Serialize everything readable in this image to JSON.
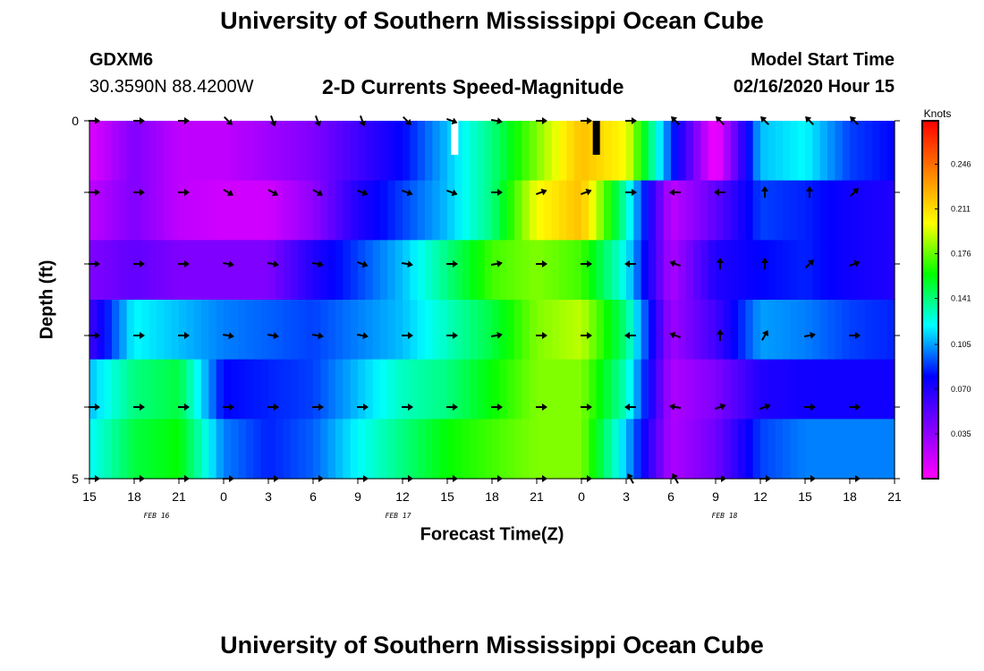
{
  "header": {
    "title": "University of Southern Mississippi Ocean Cube",
    "station_id": "GDXM6",
    "coords": "30.3590N 88.4200W",
    "subtitle": "2-D Currents Speed-Magnitude",
    "start_label": "Model Start Time",
    "start_value": "02/16/2020 Hour 15"
  },
  "footer": {
    "title": "University of Southern Mississippi Ocean Cube"
  },
  "chart_data": {
    "type": "heatmap",
    "title": "2-D Currents Speed-Magnitude",
    "xlabel": "Forecast Time(Z)",
    "ylabel": "Depth (ft)",
    "x_ticks": [
      "15",
      "18",
      "21",
      "0",
      "3",
      "6",
      "9",
      "12",
      "15",
      "18",
      "21",
      "0",
      "3",
      "6",
      "9",
      "12",
      "15",
      "18",
      "21"
    ],
    "date_labels": [
      {
        "label": "FEB 16",
        "tick_index": 1.5
      },
      {
        "label": "FEB 17",
        "tick_index": 6.9
      },
      {
        "label": "FEB 18",
        "tick_index": 14.2
      }
    ],
    "y_ticks": [
      "0",
      "",
      "",
      "",
      "",
      "5"
    ],
    "ylim": [
      0,
      5
    ],
    "colorbar": {
      "units": "Knots",
      "ticks": [
        "0.246",
        "0.211",
        "0.176",
        "0.141",
        "0.105",
        "0.070",
        "0.035"
      ],
      "tick_values": [
        0.246,
        0.211,
        0.176,
        0.141,
        0.105,
        0.07,
        0.035
      ],
      "range": [
        0.0,
        0.28
      ],
      "colors": [
        "#ff00ff",
        "#8000ff",
        "#0000ff",
        "#00ffff",
        "#00ff00",
        "#ffff00",
        "#ff8000",
        "#ff0000"
      ]
    },
    "times_hours": [
      0,
      3,
      6,
      9,
      12,
      15,
      18,
      21,
      24,
      27,
      30,
      33,
      36,
      39,
      42,
      45,
      48,
      51,
      54
    ],
    "rows": [
      {
        "layer": "surface",
        "speed": [
          0.01,
          0.04,
          0.02,
          0.02,
          0.03,
          0.04,
          0.06,
          0.08,
          0.11,
          0.14,
          0.18,
          0.22,
          0.2,
          0.09,
          0.0,
          0.11,
          0.12,
          0.09,
          0.08
        ]
      },
      {
        "layer": "1",
        "speed": [
          0.02,
          0.04,
          0.02,
          0.015,
          0.015,
          0.035,
          0.07,
          0.09,
          0.11,
          0.14,
          0.2,
          0.22,
          0.13,
          0.02,
          0.05,
          0.09,
          0.085,
          0.075,
          0.07
        ]
      },
      {
        "layer": "2",
        "speed": [
          0.04,
          0.05,
          0.04,
          0.04,
          0.04,
          0.07,
          0.09,
          0.11,
          0.14,
          0.17,
          0.18,
          0.17,
          0.12,
          0.025,
          0.07,
          0.08,
          0.085,
          0.075,
          0.07
        ]
      },
      {
        "layer": "3",
        "speed": [
          0.06,
          0.12,
          0.11,
          0.1,
          0.095,
          0.09,
          0.1,
          0.11,
          0.13,
          0.15,
          0.18,
          0.19,
          0.14,
          0.03,
          0.06,
          0.105,
          0.1,
          0.09,
          0.085
        ]
      },
      {
        "layer": "4",
        "speed": [
          0.11,
          0.14,
          0.15,
          0.08,
          0.085,
          0.09,
          0.11,
          0.13,
          0.14,
          0.16,
          0.18,
          0.18,
          0.13,
          0.025,
          0.04,
          0.07,
          0.075,
          0.075,
          0.075
        ]
      },
      {
        "layer": "5",
        "speed": [
          0.12,
          0.15,
          0.16,
          0.1,
          0.085,
          0.095,
          0.12,
          0.14,
          0.16,
          0.17,
          0.18,
          0.18,
          0.11,
          0.025,
          0.045,
          0.09,
          0.1,
          0.1,
          0.1
        ]
      }
    ],
    "arrow_times_hours": [
      0,
      3,
      6,
      9,
      12,
      15,
      18,
      21,
      24,
      27,
      30,
      33,
      36,
      39,
      42,
      45,
      48,
      51
    ],
    "arrow_directions_deg": [
      [
        90,
        90,
        90,
        135,
        160,
        160,
        160,
        135,
        110,
        100,
        90,
        90,
        90,
        315,
        315,
        315,
        315,
        315
      ],
      [
        90,
        90,
        90,
        120,
        120,
        120,
        110,
        110,
        110,
        90,
        70,
        70,
        90,
        270,
        270,
        0,
        0,
        45
      ],
      [
        90,
        90,
        90,
        100,
        100,
        100,
        110,
        100,
        90,
        80,
        90,
        90,
        270,
        290,
        0,
        0,
        45,
        70
      ],
      [
        90,
        90,
        90,
        100,
        100,
        100,
        100,
        90,
        90,
        80,
        90,
        90,
        270,
        290,
        0,
        30,
        80,
        90
      ],
      [
        90,
        90,
        90,
        90,
        90,
        90,
        90,
        90,
        90,
        90,
        90,
        90,
        270,
        280,
        70,
        70,
        90,
        90
      ],
      [
        90,
        90,
        90,
        90,
        90,
        90,
        90,
        90,
        90,
        90,
        90,
        90,
        330,
        330,
        90,
        90,
        90,
        90
      ]
    ],
    "missing_markers": [
      {
        "time_hours": 24.5,
        "layer": "surface",
        "color": "#ffffff"
      },
      {
        "time_hours": 34.0,
        "layer": "surface",
        "color": "#000000"
      }
    ]
  }
}
